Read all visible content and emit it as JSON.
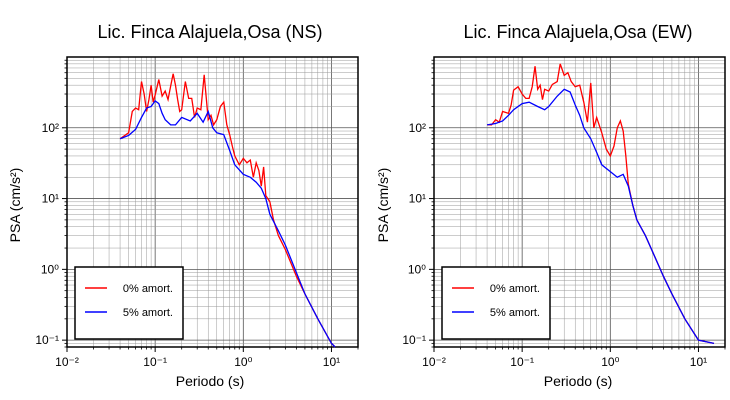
{
  "chart_data": [
    {
      "type": "line",
      "title": "Lic. Finca Alajuela,Osa (NS)",
      "xlabel": "Periodo (s)",
      "ylabel": "PSA (cm/s²)",
      "xscale": "log",
      "yscale": "log",
      "xlim": [
        0.01,
        20
      ],
      "ylim": [
        0.08,
        1000
      ],
      "grid": true,
      "legend_position": "bottom-left",
      "x_ticks": [
        "10⁻²",
        "10⁻¹",
        "10⁰",
        "10¹"
      ],
      "y_ticks": [
        "10⁻¹",
        "10⁰",
        "10¹",
        "10²"
      ],
      "series": [
        {
          "name": "0% amort.",
          "color": "#ff0000",
          "x": [
            0.04,
            0.05,
            0.055,
            0.06,
            0.065,
            0.07,
            0.075,
            0.08,
            0.085,
            0.09,
            0.095,
            0.1,
            0.11,
            0.12,
            0.13,
            0.14,
            0.15,
            0.16,
            0.17,
            0.18,
            0.19,
            0.2,
            0.22,
            0.24,
            0.26,
            0.28,
            0.3,
            0.33,
            0.36,
            0.4,
            0.43,
            0.46,
            0.5,
            0.55,
            0.6,
            0.65,
            0.7,
            0.75,
            0.8,
            0.9,
            1.0,
            1.1,
            1.2,
            1.3,
            1.4,
            1.5,
            1.6,
            1.7,
            1.8,
            2.0,
            2.2,
            2.5,
            3.0,
            4.0,
            5.0,
            7.0,
            10.0,
            11.0
          ],
          "y": [
            70,
            85,
            170,
            190,
            180,
            450,
            300,
            170,
            250,
            400,
            230,
            290,
            480,
            280,
            330,
            250,
            390,
            580,
            400,
            250,
            170,
            180,
            450,
            260,
            260,
            140,
            190,
            180,
            560,
            130,
            150,
            110,
            130,
            200,
            230,
            110,
            80,
            55,
            40,
            30,
            37,
            32,
            35,
            20,
            32,
            25,
            15,
            28,
            11,
            9,
            5,
            3,
            1.9,
            0.8,
            0.45,
            0.2,
            0.09,
            0.08
          ]
        },
        {
          "name": "5% amort.",
          "color": "#0000ff",
          "x": [
            0.04,
            0.05,
            0.06,
            0.07,
            0.08,
            0.09,
            0.1,
            0.11,
            0.12,
            0.13,
            0.15,
            0.17,
            0.2,
            0.25,
            0.3,
            0.35,
            0.4,
            0.45,
            0.5,
            0.6,
            0.7,
            0.8,
            1.0,
            1.2,
            1.4,
            1.6,
            1.8,
            2.0,
            2.5,
            3.0,
            4.0,
            5.0,
            7.0,
            10.0,
            11.0
          ],
          "y": [
            70,
            78,
            95,
            140,
            190,
            200,
            240,
            220,
            160,
            130,
            110,
            110,
            140,
            125,
            160,
            120,
            170,
            100,
            85,
            80,
            48,
            30,
            22,
            20,
            17,
            14,
            10,
            6,
            3.5,
            2.2,
            0.9,
            0.45,
            0.2,
            0.09,
            0.08
          ]
        }
      ]
    },
    {
      "type": "line",
      "title": "Lic. Finca Alajuela,Osa (EW)",
      "xlabel": "Periodo (s)",
      "ylabel": "PSA (cm/s²)",
      "xscale": "log",
      "yscale": "log",
      "xlim": [
        0.01,
        20
      ],
      "ylim": [
        0.08,
        1000
      ],
      "grid": true,
      "legend_position": "bottom-left",
      "x_ticks": [
        "10⁻²",
        "10⁻¹",
        "10⁰",
        "10¹"
      ],
      "y_ticks": [
        "10⁻¹",
        "10⁰",
        "10¹",
        "10²"
      ],
      "series": [
        {
          "name": "0% amort.",
          "color": "#ff0000",
          "x": [
            0.04,
            0.045,
            0.05,
            0.055,
            0.06,
            0.07,
            0.075,
            0.08,
            0.09,
            0.1,
            0.11,
            0.12,
            0.13,
            0.14,
            0.15,
            0.16,
            0.17,
            0.18,
            0.2,
            0.22,
            0.25,
            0.27,
            0.3,
            0.33,
            0.36,
            0.4,
            0.45,
            0.5,
            0.55,
            0.6,
            0.65,
            0.7,
            0.8,
            0.9,
            1.0,
            1.1,
            1.2,
            1.3,
            1.4,
            1.5,
            1.6,
            1.8,
            2.0,
            2.5,
            3.0,
            4.0,
            5.0,
            7.0,
            10.0,
            15.0
          ],
          "y": [
            110,
            110,
            130,
            120,
            170,
            160,
            210,
            340,
            380,
            300,
            260,
            260,
            380,
            740,
            350,
            400,
            250,
            350,
            330,
            410,
            450,
            800,
            550,
            600,
            450,
            380,
            400,
            230,
            120,
            430,
            100,
            140,
            85,
            50,
            40,
            55,
            100,
            125,
            90,
            40,
            16,
            8,
            5,
            3,
            1.8,
            0.8,
            0.45,
            0.2,
            0.1,
            0.09
          ]
        },
        {
          "name": "5% amort.",
          "color": "#0000ff",
          "x": [
            0.04,
            0.05,
            0.06,
            0.07,
            0.08,
            0.1,
            0.12,
            0.15,
            0.18,
            0.2,
            0.25,
            0.3,
            0.35,
            0.4,
            0.45,
            0.5,
            0.6,
            0.7,
            0.8,
            1.0,
            1.2,
            1.4,
            1.6,
            1.8,
            2.0,
            2.5,
            3.0,
            4.0,
            5.0,
            7.0,
            10.0,
            15.0
          ],
          "y": [
            110,
            115,
            125,
            150,
            180,
            220,
            230,
            200,
            180,
            200,
            280,
            350,
            320,
            210,
            150,
            100,
            70,
            45,
            30,
            24,
            20,
            22,
            15,
            8,
            5,
            3,
            1.8,
            0.8,
            0.45,
            0.2,
            0.1,
            0.09
          ]
        }
      ]
    }
  ]
}
